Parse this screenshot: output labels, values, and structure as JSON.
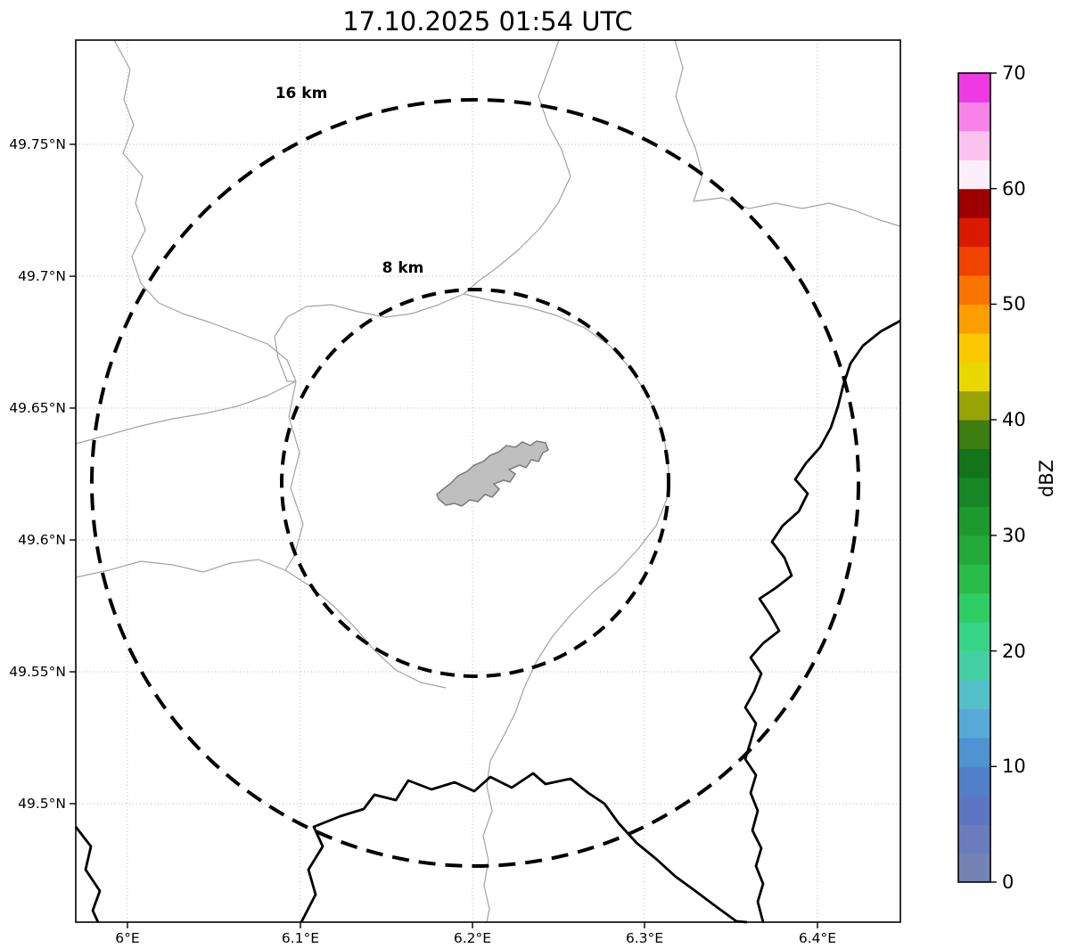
{
  "title": "17.10.2025 01:54 UTC",
  "map": {
    "x_axis": {
      "ticks": [
        "6°E",
        "6.1°E",
        "6.2°E",
        "6.3°E",
        "6.4°E"
      ]
    },
    "y_axis": {
      "ticks": [
        "49.75°N",
        "49.7°N",
        "49.65°N",
        "49.6°N",
        "49.55°N",
        "49.5°N"
      ]
    },
    "range_rings": {
      "inner_label": "8 km",
      "outer_label": "16 km",
      "ring_color": "#000000"
    },
    "features": {
      "airport_fill": "#bfbfbf",
      "airport_stroke": "#7a7a7a",
      "minor_boundary_color": "#a3a3a3",
      "major_boundary_color": "#000000",
      "grid_color": "#b5b5b5"
    }
  },
  "colorbar": {
    "label": "dBZ",
    "ticks": [
      "0",
      "10",
      "20",
      "30",
      "40",
      "50",
      "60",
      "70"
    ],
    "range": {
      "min": 0,
      "max": 70
    },
    "segment_step_dbz": 2.5,
    "colors_bottom_to_top": [
      "#7583b4",
      "#6a7cbc",
      "#5d76c3",
      "#5180c9",
      "#4d94d1",
      "#57aad8",
      "#53c1c7",
      "#45cfa5",
      "#39d586",
      "#2fcd64",
      "#29bc4b",
      "#23aa3b",
      "#1d992f",
      "#178725",
      "#12751c",
      "#3d7d11",
      "#97a307",
      "#e8d800",
      "#fcc800",
      "#fc9e00",
      "#fa7400",
      "#f04300",
      "#d91a00",
      "#9e0000",
      "#fdeffa",
      "#fbc2f0",
      "#f783e8",
      "#ee3ae2"
    ]
  }
}
